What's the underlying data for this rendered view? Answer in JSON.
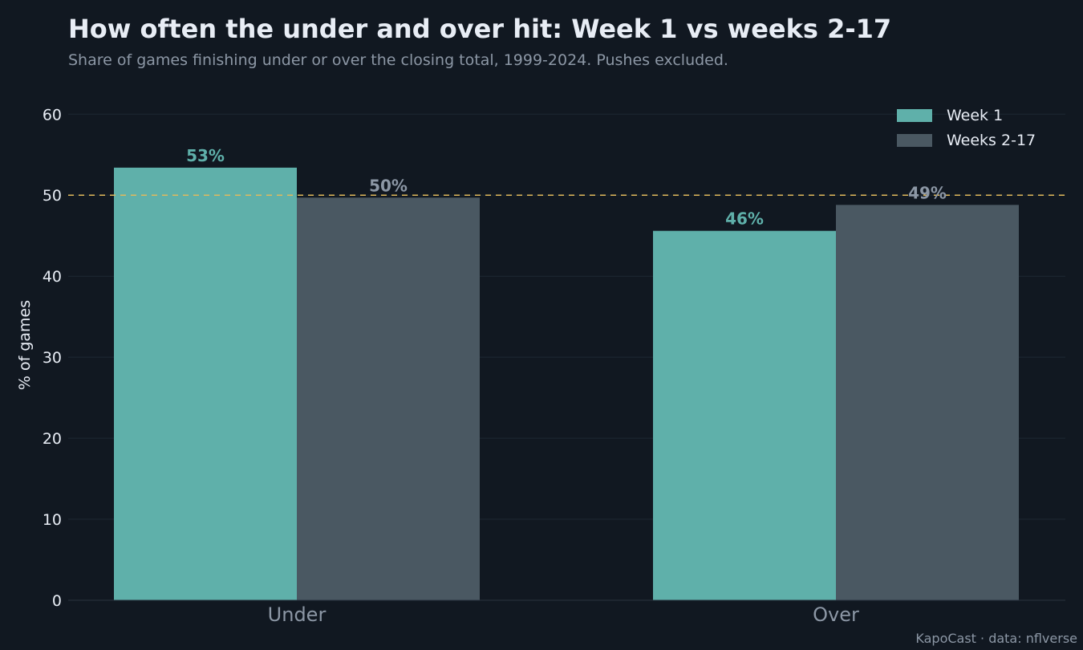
{
  "title": "How often the under and over hit: Week 1 vs weeks 2-17",
  "subtitle": "Share of games finishing under or over the closing total, 1999-2024. Pushes excluded.",
  "credit": "KapoCast · data: nflverse",
  "colors": {
    "background": "#111821",
    "week1": "#5fb0aa",
    "weeks2_17": "#4a5862",
    "reference_line": "#e0b95c",
    "grid": "#1e2833",
    "tick_text": "#e8edf5",
    "category_text": "#8c97a5"
  },
  "chart_data": {
    "type": "bar",
    "categories": [
      "Under",
      "Over"
    ],
    "series": [
      {
        "name": "Week 1",
        "values": [
          53.4,
          45.6
        ],
        "labels": [
          "53%",
          "46%"
        ]
      },
      {
        "name": "Weeks 2-17",
        "values": [
          49.7,
          48.8
        ],
        "labels": [
          "50%",
          "49%"
        ]
      }
    ],
    "ylabel": "% of games",
    "xlabel": "",
    "ylim": [
      0,
      63
    ],
    "yticks": [
      "0",
      "10",
      "20",
      "30",
      "40",
      "50",
      "60"
    ],
    "reference_line": 50,
    "grid": true,
    "legend": "top-right"
  }
}
